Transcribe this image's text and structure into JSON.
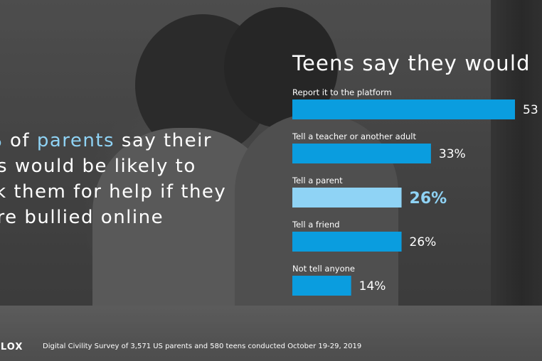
{
  "headline": {
    "pct": "%",
    "word1": "of",
    "highlight": "parents",
    "line1_rest": "say their",
    "line2": "ds would be likely to",
    "line3": "sk them for help if they",
    "line4": "ere bullied online"
  },
  "footer": {
    "logo": "BLOX",
    "note": "Digital Civility Survey of 3,571 US parents and 580 teens conducted October 19-29, 2019"
  },
  "colors": {
    "bar": "#0a9ddf",
    "bar_highlight": "#8fd3f5"
  },
  "chart_data": {
    "type": "bar",
    "orientation": "horizontal",
    "title": "Teens say they would",
    "categories": [
      "Report it to the platform",
      "Tell a teacher or another adult",
      "Tell a parent",
      "Tell a friend",
      "Not tell anyone"
    ],
    "values": [
      53,
      33,
      26,
      26,
      14
    ],
    "value_labels": [
      "53",
      "33%",
      "26%",
      "26%",
      "14%"
    ],
    "highlight_index": 2,
    "xlim": [
      0,
      53
    ]
  }
}
